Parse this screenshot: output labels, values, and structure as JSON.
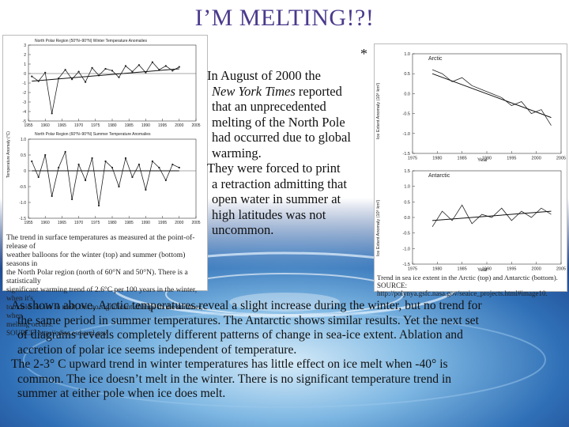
{
  "slide": {
    "title": "I’M MELTING!?!",
    "marker_left": "*",
    "marker_right": "*"
  },
  "left_panel": {
    "chart_top_title": "North Polar Region (50°N–90°N) Winter Temperature Anomalies",
    "chart_bottom_title": "North Polar Region (60°N–90°N) Summer Temperature Anomalies",
    "y_axis_label": "Temperature Anomaly (°C)",
    "caption_lines": [
      "The trend in surface temperatures as measured at the point-of-release of",
      "weather balloons for the winter (top) and summer (bottom) seasons in",
      "the North Polar region (north of 60°N and 50°N). There is a statistically",
      "significant warming trend of 2.6°C per 100 years in the winter, when it's",
      "too cold for ice to melt, but no significant change in the summer, when",
      "melting occurs."
    ],
    "source": "SOURCE: http://cdiac.esd.ornl.gov."
  },
  "middle_text": {
    "lines": [
      "In August of 2000 the",
      "New York Times reported",
      "that an unprecedented",
      "melting of the North Pole",
      "had occurred due to global",
      "warming.",
      "They were forced to print",
      "a retraction admitting that",
      "open water in summer at",
      "high latitudes was not",
      "uncommon."
    ]
  },
  "right_panel": {
    "arctic_label": "Arctic",
    "antarctic_label": "Antarctic",
    "y_axis_label_top": "Ice Extent Anomaly (10⁶ km²)",
    "y_axis_label_bottom": "Ice Extent Anomaly (10⁶ km²)",
    "x_axis_label": "Year",
    "caption": "Trend in sea ice extent in the Arctic (top) and Antarctic (bottom).",
    "source": "SOURCE: http://polynya.gsfc.nasa.gov/seaice_projects.html#image10."
  },
  "bottom_text": {
    "lines": [
      "As shown above, Arctic temperatures reveal a slight increase during the winter, but no trend for",
      "the same period in summer temperatures.  The Antarctic shows similar results.  Yet the next set",
      "of diagrams reveals completely different patterns of change in sea-ice extent.  Ablation and",
      "accretion of polar ice seems independent of temperature.",
      "The 2-3° C upward trend in winter temperatures has little effect on ice melt when -40° is",
      "common.  The ice doesn’t melt in the winter.  There is no significant temperature trend in",
      "summer at either pole when ice does melt."
    ]
  },
  "chart_data": [
    {
      "type": "line",
      "title": "North Polar Region (50°N–90°N) Winter Temperature Anomalies",
      "ylabel": "Temperature Anomaly (°C)",
      "x_ticks": [
        "1955",
        "1960",
        "1965",
        "1970",
        "1975",
        "1980",
        "1985",
        "1990",
        "1995",
        "2000",
        "2005"
      ],
      "y_ticks": [
        "3",
        "2",
        "1",
        "0",
        "-1",
        "-2",
        "-3",
        "-4",
        "-5"
      ],
      "ylim": [
        -5,
        3
      ],
      "x": [
        1956,
        1958,
        1960,
        1962,
        1964,
        1966,
        1968,
        1970,
        1972,
        1974,
        1976,
        1978,
        1980,
        1982,
        1984,
        1986,
        1988,
        1990,
        1992,
        1994,
        1996,
        1998,
        2000
      ],
      "values": [
        -0.3,
        -0.8,
        0.1,
        -4.2,
        -0.5,
        0.4,
        -0.6,
        0.2,
        -0.9,
        0.6,
        -0.2,
        0.5,
        0.3,
        -0.4,
        0.8,
        0.2,
        0.9,
        0.1,
        1.2,
        0.4,
        0.8,
        0.3,
        0.7
      ],
      "trend": [
        -0.8,
        0.5
      ]
    },
    {
      "type": "line",
      "title": "North Polar Region (60°N–90°N) Summer Temperature Anomalies",
      "x_ticks": [
        "1955",
        "1960",
        "1965",
        "1970",
        "1975",
        "1980",
        "1985",
        "1990",
        "1995",
        "2000",
        "2005"
      ],
      "y_ticks": [
        "1.0",
        "0.5",
        "0",
        "-0.5",
        "-1.0",
        "-1.5"
      ],
      "ylim": [
        -1.5,
        1.0
      ],
      "x": [
        1956,
        1958,
        1960,
        1962,
        1964,
        1966,
        1968,
        1970,
        1972,
        1974,
        1976,
        1978,
        1980,
        1982,
        1984,
        1986,
        1988,
        1990,
        1992,
        1994,
        1996,
        1998,
        2000
      ],
      "values": [
        0.3,
        -0.2,
        0.5,
        -0.8,
        0.1,
        0.6,
        -0.9,
        0.2,
        -0.3,
        0.4,
        -1.1,
        0.3,
        0.1,
        -0.5,
        0.4,
        -0.2,
        0.2,
        -0.6,
        0.3,
        0.1,
        -0.3,
        0.2,
        0.1
      ],
      "trend": [
        0.0,
        0.0
      ]
    },
    {
      "type": "line",
      "title": "Arctic",
      "xlabel": "Year",
      "ylabel": "Ice Extent Anomaly (10⁶ km²)",
      "x_ticks": [
        "1975",
        "1980",
        "1985",
        "1990",
        "1995",
        "2000",
        "2005"
      ],
      "y_ticks": [
        "1.0",
        "0.5",
        "0.0",
        "-0.5",
        "-1.0",
        "-1.5"
      ],
      "ylim": [
        -1.5,
        1.0
      ],
      "x": [
        1979,
        1981,
        1983,
        1985,
        1987,
        1989,
        1991,
        1993,
        1995,
        1997,
        1999,
        2001,
        2003
      ],
      "values": [
        0.6,
        0.5,
        0.3,
        0.4,
        0.2,
        0.1,
        0.0,
        -0.1,
        -0.3,
        -0.2,
        -0.5,
        -0.4,
        -0.8
      ],
      "trend": [
        0.5,
        -0.6
      ]
    },
    {
      "type": "line",
      "title": "Antarctic",
      "xlabel": "Year",
      "ylabel": "Ice Extent Anomaly (10⁶ km²)",
      "x_ticks": [
        "1975",
        "1980",
        "1985",
        "1990",
        "1995",
        "2000",
        "2005"
      ],
      "y_ticks": [
        "1.5",
        "1.0",
        "0.5",
        "0.0",
        "-0.5",
        "-1.0",
        "-1.5"
      ],
      "ylim": [
        -1.5,
        1.5
      ],
      "x": [
        1979,
        1981,
        1983,
        1985,
        1987,
        1989,
        1991,
        1993,
        1995,
        1997,
        1999,
        2001,
        2003
      ],
      "values": [
        -0.3,
        0.2,
        -0.1,
        0.4,
        -0.2,
        0.1,
        0.0,
        0.3,
        -0.1,
        0.2,
        0.0,
        0.3,
        0.1
      ],
      "trend": [
        -0.1,
        0.2
      ]
    }
  ]
}
